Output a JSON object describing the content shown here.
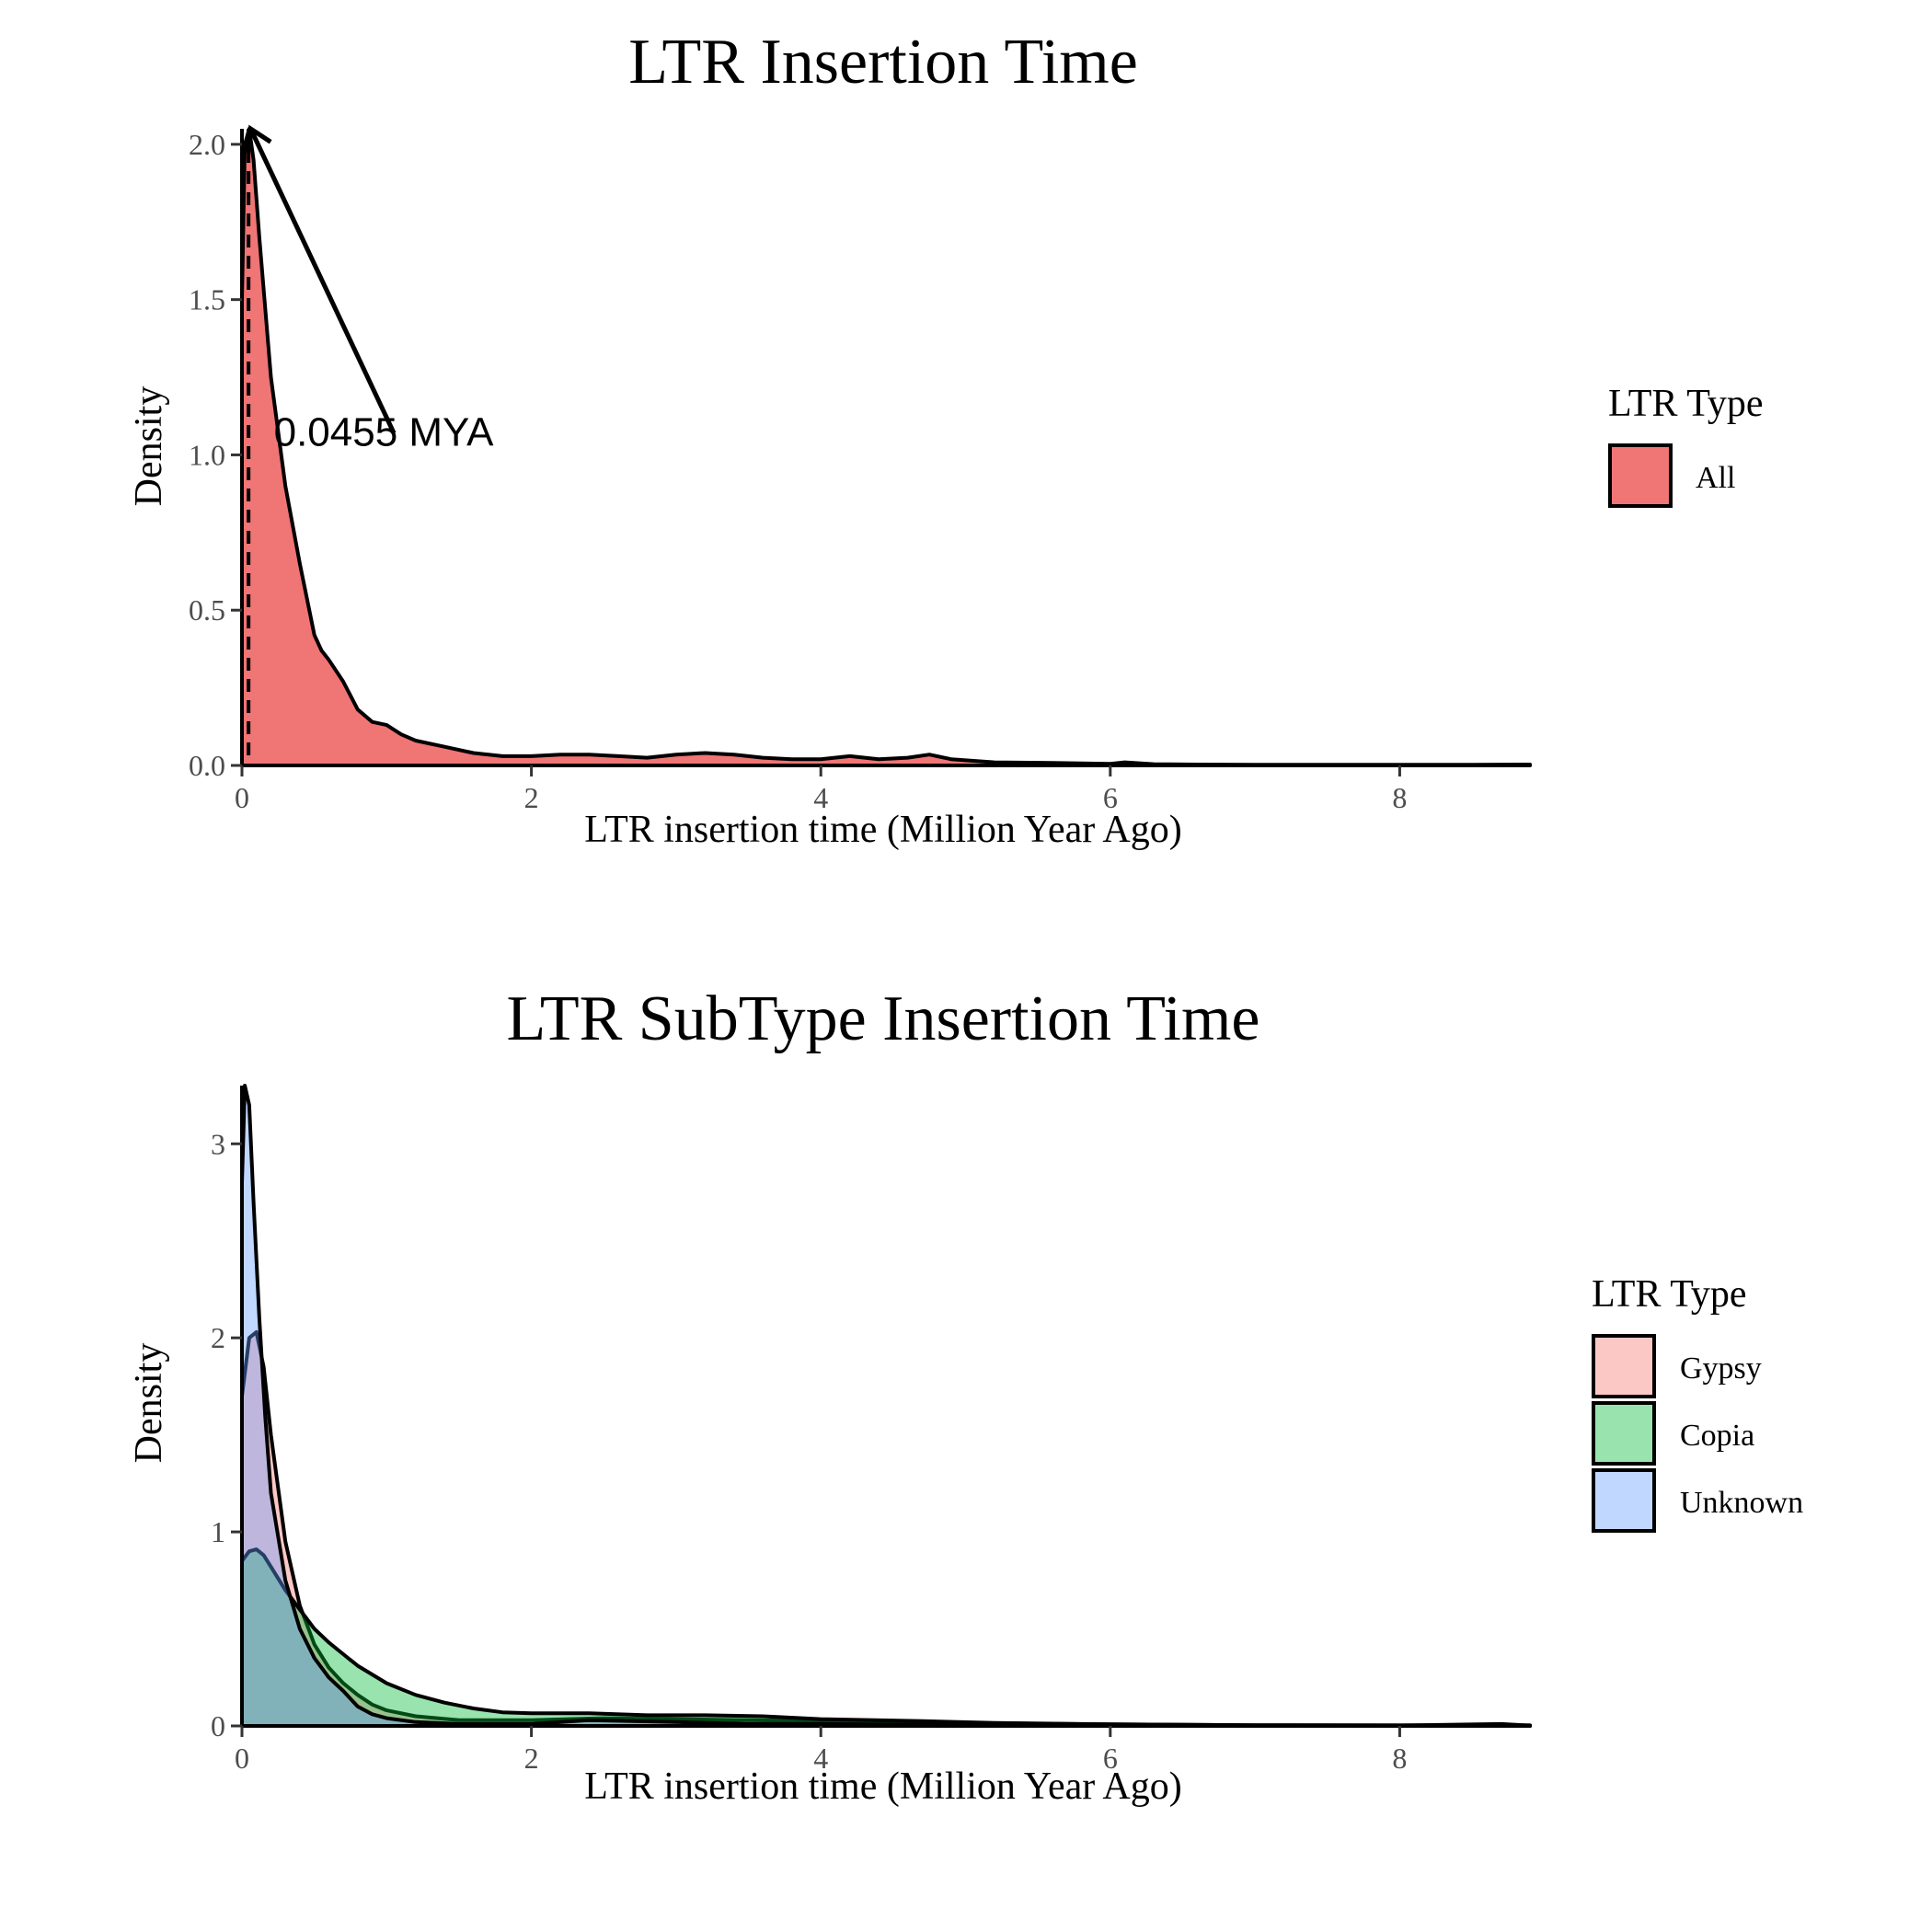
{
  "chart_data": [
    {
      "type": "area",
      "kind": "density",
      "title": "LTR Insertion Time",
      "xlabel": "LTR insertion time (Million Year Ago)",
      "ylabel": "Density",
      "xlim": [
        0,
        8.9
      ],
      "ylim": [
        0,
        2.05
      ],
      "xticks": [
        0,
        2,
        4,
        6,
        8
      ],
      "yticks": [
        0.0,
        0.5,
        1.0,
        1.5,
        2.0
      ],
      "ytick_labels": [
        "0.0",
        "0.5",
        "1.0",
        "1.5",
        "2.0"
      ],
      "xtick_labels": [
        "0",
        "2",
        "4",
        "6",
        "8"
      ],
      "legend": {
        "title": "LTR Type",
        "position": "right",
        "entries": [
          "All"
        ]
      },
      "annotation": {
        "text": "0.0455 MYA",
        "peak_x": 0.0455,
        "peak_y": 2.05,
        "arrow_from": [
          1.05,
          1.07
        ],
        "arrow_to": [
          0.06,
          2.05
        ],
        "text_at": [
          0.22,
          1.03
        ],
        "vline_x": 0.0455
      },
      "series": [
        {
          "name": "All",
          "color": "#F07575",
          "x": [
            0,
            0.02,
            0.05,
            0.08,
            0.12,
            0.2,
            0.3,
            0.4,
            0.5,
            0.55,
            0.6,
            0.7,
            0.8,
            0.9,
            1.0,
            1.1,
            1.2,
            1.4,
            1.6,
            1.8,
            2.0,
            2.2,
            2.4,
            2.6,
            2.8,
            3.0,
            3.2,
            3.4,
            3.6,
            3.8,
            4.0,
            4.2,
            4.4,
            4.6,
            4.75,
            4.9,
            5.2,
            5.6,
            6.0,
            6.1,
            6.3,
            6.6,
            7.0,
            7.5,
            8.0,
            8.5,
            8.9
          ],
          "values": [
            1.5,
            2.0,
            2.05,
            1.95,
            1.7,
            1.25,
            0.9,
            0.65,
            0.42,
            0.37,
            0.34,
            0.27,
            0.18,
            0.14,
            0.13,
            0.1,
            0.08,
            0.06,
            0.04,
            0.03,
            0.03,
            0.035,
            0.035,
            0.03,
            0.025,
            0.035,
            0.04,
            0.035,
            0.025,
            0.02,
            0.02,
            0.03,
            0.02,
            0.025,
            0.035,
            0.02,
            0.01,
            0.008,
            0.005,
            0.01,
            0.004,
            0.003,
            0.002,
            0.002,
            0.002,
            0.002,
            0.003
          ]
        }
      ]
    },
    {
      "type": "area",
      "kind": "density",
      "title": "LTR SubType Insertion Time",
      "xlabel": "LTR insertion time (Million Year Ago)",
      "ylabel": "Density",
      "xlim": [
        0,
        8.9
      ],
      "ylim": [
        0,
        3.3
      ],
      "xticks": [
        0,
        2,
        4,
        6,
        8
      ],
      "yticks": [
        0,
        1,
        2,
        3
      ],
      "ytick_labels": [
        "0",
        "1",
        "2",
        "3"
      ],
      "xtick_labels": [
        "0",
        "2",
        "4",
        "6",
        "8"
      ],
      "legend": {
        "title": "LTR Type",
        "position": "right",
        "entries": [
          "Gypsy",
          "Copia",
          "Unknown"
        ]
      },
      "series": [
        {
          "name": "Gypsy",
          "color": "#F8766D",
          "x": [
            0,
            0.05,
            0.1,
            0.15,
            0.2,
            0.3,
            0.4,
            0.5,
            0.6,
            0.7,
            0.8,
            0.9,
            1.0,
            1.2,
            1.5,
            2.0,
            2.5,
            3.0,
            3.5,
            4.0,
            4.5,
            5.0,
            6.0,
            7.0,
            8.0,
            8.9
          ],
          "values": [
            1.7,
            2.0,
            2.03,
            1.85,
            1.5,
            0.95,
            0.62,
            0.42,
            0.3,
            0.22,
            0.16,
            0.11,
            0.08,
            0.05,
            0.03,
            0.03,
            0.04,
            0.035,
            0.03,
            0.025,
            0.02,
            0.015,
            0.008,
            0.004,
            0.003,
            0.003
          ]
        },
        {
          "name": "Copia",
          "color": "#00BA38",
          "x": [
            0,
            0.05,
            0.1,
            0.15,
            0.2,
            0.3,
            0.4,
            0.5,
            0.6,
            0.7,
            0.8,
            1.0,
            1.2,
            1.4,
            1.6,
            1.8,
            2.0,
            2.4,
            2.8,
            3.2,
            3.6,
            4.0,
            4.7,
            5.2,
            6.0,
            7.0,
            8.0,
            8.9
          ],
          "values": [
            0.85,
            0.9,
            0.91,
            0.88,
            0.82,
            0.7,
            0.6,
            0.5,
            0.43,
            0.37,
            0.31,
            0.22,
            0.16,
            0.12,
            0.09,
            0.07,
            0.065,
            0.065,
            0.055,
            0.055,
            0.05,
            0.035,
            0.025,
            0.015,
            0.008,
            0.004,
            0.003,
            0.003
          ]
        },
        {
          "name": "Unknown",
          "color": "#619CFF",
          "x": [
            0,
            0.02,
            0.05,
            0.08,
            0.12,
            0.16,
            0.2,
            0.3,
            0.4,
            0.5,
            0.6,
            0.7,
            0.8,
            0.9,
            1.0,
            1.2,
            1.5,
            2.0,
            2.4,
            3.0,
            3.5,
            4.0,
            5.0,
            6.0,
            7.0,
            8.0,
            8.7,
            8.9
          ],
          "values": [
            2.8,
            3.3,
            3.2,
            2.7,
            2.1,
            1.6,
            1.2,
            0.75,
            0.5,
            0.35,
            0.25,
            0.18,
            0.1,
            0.06,
            0.04,
            0.02,
            0.01,
            0.01,
            0.03,
            0.02,
            0.01,
            0.01,
            0.005,
            0.003,
            0.002,
            0.002,
            0.01,
            0.002
          ]
        }
      ]
    }
  ]
}
